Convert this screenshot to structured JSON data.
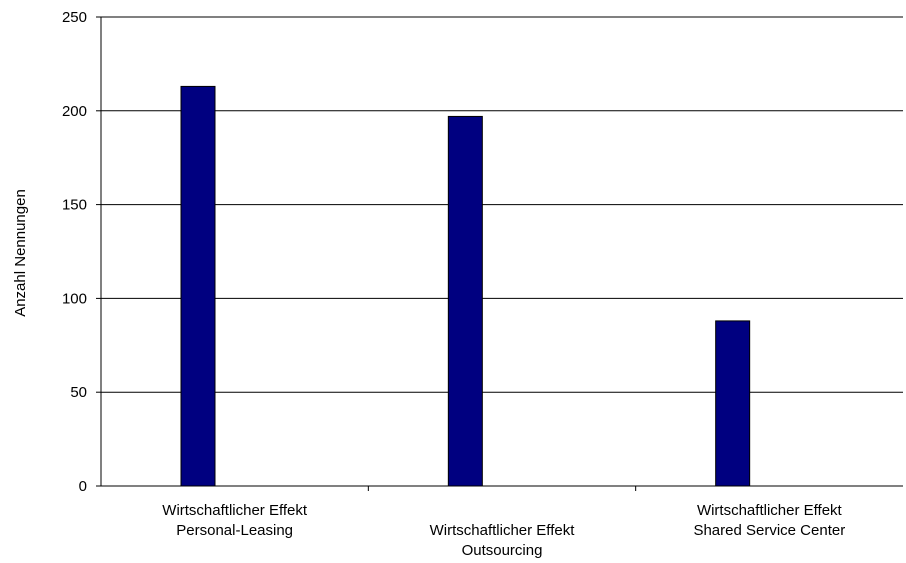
{
  "chart_data": {
    "type": "bar",
    "categories": [
      [
        "Wirtschaftlicher Effekt",
        "Personal-Leasing"
      ],
      [
        "Wirtschaftlicher Effekt",
        "Outsourcing"
      ],
      [
        "Wirtschaftlicher Effekt",
        "Shared Service Center"
      ]
    ],
    "values": [
      213,
      197,
      88
    ],
    "ylabel": "Anzahl Nennungen",
    "ylim": [
      0,
      250
    ],
    "yticks": [
      0,
      50,
      100,
      150,
      200,
      250
    ],
    "grid": true,
    "bar_color": "#000080",
    "legend": "none"
  }
}
